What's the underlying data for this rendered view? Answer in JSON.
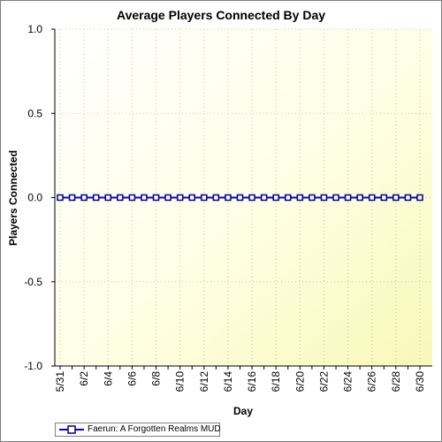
{
  "chart_data": {
    "type": "line",
    "title": "Average Players Connected By Day",
    "xlabel": "Day",
    "ylabel": "Players Connected",
    "ylim": [
      -1.0,
      1.0
    ],
    "y_ticks": [
      "1.0",
      "0.5",
      "0.0",
      "-0.5",
      "-1.0"
    ],
    "y_tick_values": [
      1.0,
      0.5,
      0.0,
      -0.5,
      -1.0
    ],
    "categories": [
      "5/31",
      "6/1",
      "6/2",
      "6/3",
      "6/4",
      "6/5",
      "6/6",
      "6/7",
      "6/8",
      "6/9",
      "6/10",
      "6/11",
      "6/12",
      "6/13",
      "6/14",
      "6/15",
      "6/16",
      "6/17",
      "6/18",
      "6/19",
      "6/20",
      "6/21",
      "6/22",
      "6/23",
      "6/24",
      "6/25",
      "6/26",
      "6/27",
      "6/28",
      "6/29",
      "6/30"
    ],
    "x_tick_labels": [
      "5/31",
      "6/2",
      "6/4",
      "6/6",
      "6/8",
      "6/10",
      "6/12",
      "6/14",
      "6/16",
      "6/18",
      "6/20",
      "6/22",
      "6/24",
      "6/26",
      "6/28",
      "6/30"
    ],
    "series": [
      {
        "name": "Faerun: A Forgotten Realms MUD",
        "color": "#000080",
        "values": [
          0,
          0,
          0,
          0,
          0,
          0,
          0,
          0,
          0,
          0,
          0,
          0,
          0,
          0,
          0,
          0,
          0,
          0,
          0,
          0,
          0,
          0,
          0,
          0,
          0,
          0,
          0,
          0,
          0,
          0,
          0
        ]
      }
    ],
    "grid": true,
    "legend_position": "bottom-left"
  }
}
